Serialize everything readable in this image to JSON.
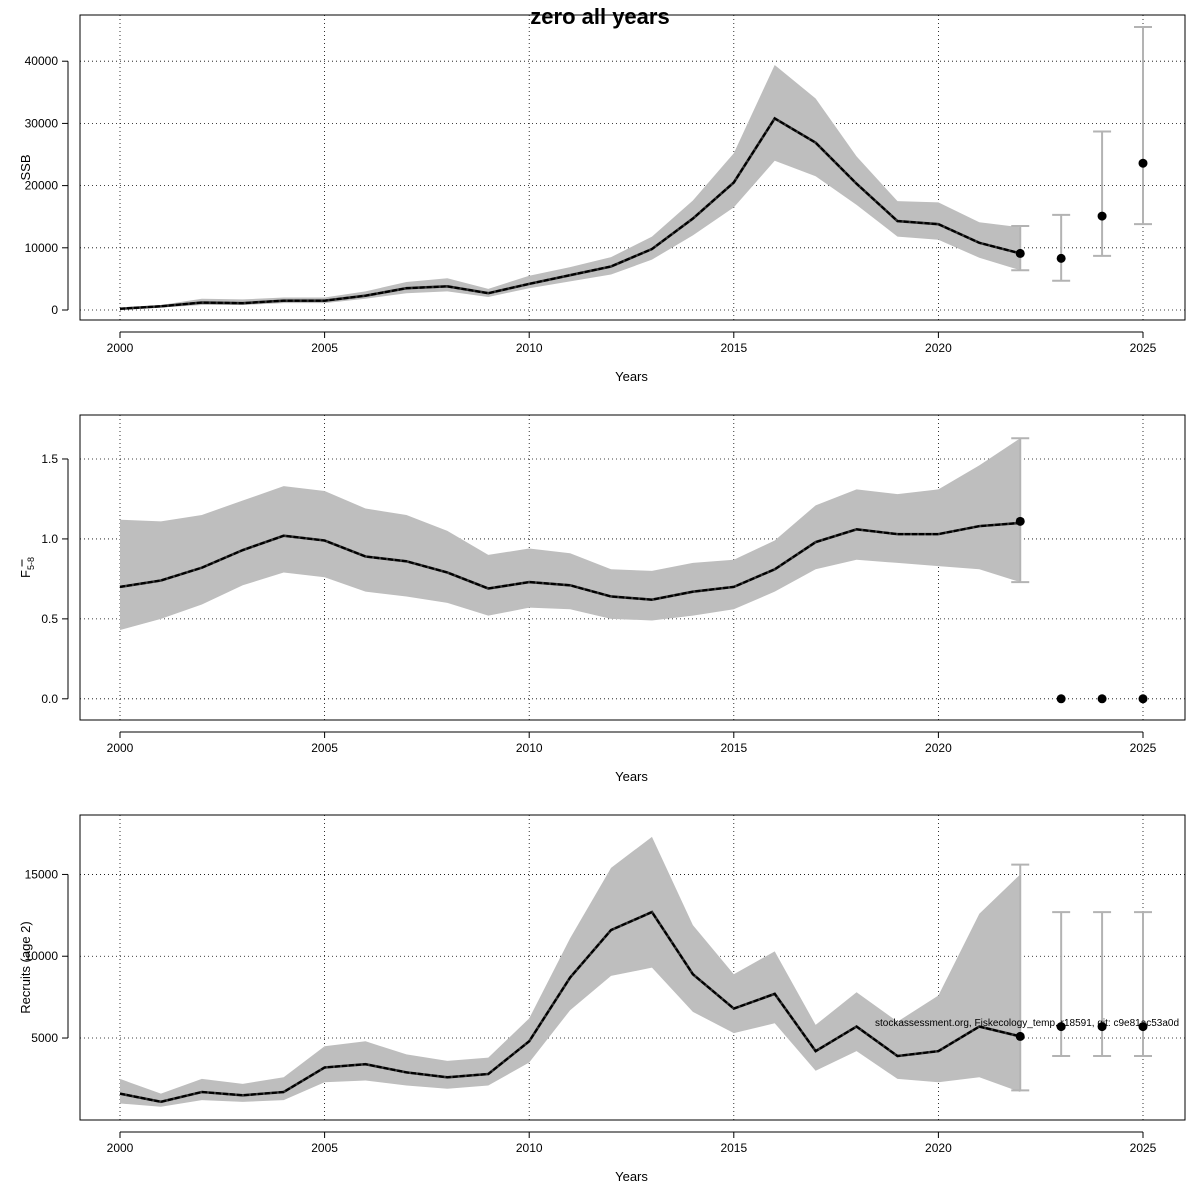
{
  "figure": {
    "title": "zero all years",
    "footnote": "stockassessment.org, Fiskecology_temp, r18591, git: c9e81ac53a0d"
  },
  "chart_data": [
    {
      "type": "line",
      "name": "ssb",
      "xlabel": "Years",
      "ylabel": "SSB",
      "xlim": [
        2000,
        2025
      ],
      "ylim": [
        0,
        45500
      ],
      "xticks": [
        2000,
        2005,
        2010,
        2015,
        2020,
        2025
      ],
      "yticks": [
        0,
        10000,
        20000,
        30000,
        40000
      ],
      "grid": true,
      "x": [
        2000,
        2001,
        2002,
        2003,
        2004,
        2005,
        2006,
        2007,
        2008,
        2009,
        2010,
        2011,
        2012,
        2013,
        2014,
        2015,
        2016,
        2017,
        2018,
        2019,
        2020,
        2021,
        2022
      ],
      "estimate": [
        200,
        600,
        1200,
        1100,
        1500,
        1500,
        2300,
        3500,
        3800,
        2700,
        4200,
        5600,
        7000,
        9800,
        14700,
        20500,
        30800,
        26900,
        20300,
        14300,
        13800,
        10800,
        9100
      ],
      "lower": [
        100,
        400,
        800,
        800,
        1100,
        1100,
        1800,
        2700,
        3000,
        2100,
        3500,
        4600,
        5700,
        8100,
        12000,
        16500,
        24000,
        21500,
        16900,
        11800,
        11300,
        8400,
        6400
      ],
      "upper": [
        300,
        800,
        1800,
        1700,
        2000,
        2000,
        3000,
        4500,
        5100,
        3400,
        5500,
        6900,
        8500,
        11800,
        17600,
        25200,
        39400,
        34000,
        24700,
        17500,
        17300,
        14100,
        13300
      ],
      "projections": [
        {
          "x": 2022,
          "y": 9100,
          "low": 6400,
          "high": 13500
        },
        {
          "x": 2023,
          "y": 8300,
          "low": 4700,
          "high": 15300
        },
        {
          "x": 2024,
          "y": 15100,
          "low": 8700,
          "high": 28700
        },
        {
          "x": 2025,
          "y": 23600,
          "low": 13800,
          "high": 45500
        }
      ]
    },
    {
      "type": "line",
      "name": "fbar",
      "xlabel": "Years",
      "ylabel": "F",
      "ylabel_subscript": "5-8",
      "xlim": [
        2000,
        2025
      ],
      "ylim": [
        -0.07,
        1.7
      ],
      "xticks": [
        2000,
        2005,
        2010,
        2015,
        2020,
        2025
      ],
      "yticks": [
        "0.0",
        "0.5",
        "1.0",
        "1.5"
      ],
      "grid": true,
      "x": [
        2000,
        2001,
        2002,
        2003,
        2004,
        2005,
        2006,
        2007,
        2008,
        2009,
        2010,
        2011,
        2012,
        2013,
        2014,
        2015,
        2016,
        2017,
        2018,
        2019,
        2020,
        2021,
        2022
      ],
      "estimate": [
        0.7,
        0.74,
        0.82,
        0.93,
        1.02,
        0.99,
        0.89,
        0.86,
        0.79,
        0.69,
        0.73,
        0.71,
        0.64,
        0.62,
        0.67,
        0.7,
        0.81,
        0.98,
        1.06,
        1.03,
        1.03,
        1.08,
        1.1
      ],
      "lower": [
        0.43,
        0.5,
        0.59,
        0.71,
        0.79,
        0.76,
        0.67,
        0.64,
        0.6,
        0.52,
        0.57,
        0.56,
        0.5,
        0.49,
        0.52,
        0.56,
        0.67,
        0.81,
        0.87,
        0.85,
        0.83,
        0.81,
        0.73
      ],
      "upper": [
        1.12,
        1.11,
        1.15,
        1.24,
        1.33,
        1.3,
        1.19,
        1.15,
        1.05,
        0.9,
        0.94,
        0.91,
        0.81,
        0.8,
        0.85,
        0.87,
        0.99,
        1.21,
        1.31,
        1.28,
        1.31,
        1.46,
        1.63
      ],
      "projections": [
        {
          "x": 2022,
          "y": 1.11,
          "low": 0.73,
          "high": 1.63
        },
        {
          "x": 2023,
          "y": 0.0
        },
        {
          "x": 2024,
          "y": 0.0
        },
        {
          "x": 2025,
          "y": 0.0
        }
      ]
    },
    {
      "type": "line",
      "name": "recruits",
      "xlabel": "Years",
      "ylabel": "Recruits (age 2)",
      "xlim": [
        2000,
        2025
      ],
      "ylim": [
        600,
        17900
      ],
      "xticks": [
        2000,
        2005,
        2010,
        2015,
        2020,
        2025
      ],
      "yticks": [
        5000,
        10000,
        15000
      ],
      "grid": true,
      "x": [
        2000,
        2001,
        2002,
        2003,
        2004,
        2005,
        2006,
        2007,
        2008,
        2009,
        2010,
        2011,
        2012,
        2013,
        2014,
        2015,
        2016,
        2017,
        2018,
        2019,
        2020,
        2021,
        2022
      ],
      "estimate": [
        1600,
        1100,
        1700,
        1500,
        1700,
        3200,
        3400,
        2900,
        2600,
        2800,
        4800,
        8700,
        11600,
        12700,
        8900,
        6800,
        7700,
        4200,
        5700,
        3900,
        4200,
        5700,
        5100
      ],
      "lower": [
        1000,
        800,
        1200,
        1100,
        1200,
        2300,
        2400,
        2100,
        1900,
        2100,
        3500,
        6700,
        8800,
        9300,
        6600,
        5300,
        5900,
        3000,
        4200,
        2500,
        2300,
        2600,
        1700
      ],
      "upper": [
        2500,
        1600,
        2500,
        2200,
        2600,
        4500,
        4800,
        4000,
        3600,
        3800,
        6200,
        11100,
        15400,
        17300,
        11900,
        8900,
        10300,
        5800,
        7800,
        6000,
        7600,
        12600,
        15000
      ],
      "projections": [
        {
          "x": 2022,
          "y": 5100,
          "low": 1800,
          "high": 15600
        },
        {
          "x": 2023,
          "y": 5700,
          "low": 3900,
          "high": 12700
        },
        {
          "x": 2024,
          "y": 5700,
          "low": 3900,
          "high": 12700
        },
        {
          "x": 2025,
          "y": 5700,
          "low": 3900,
          "high": 12700
        }
      ]
    }
  ]
}
